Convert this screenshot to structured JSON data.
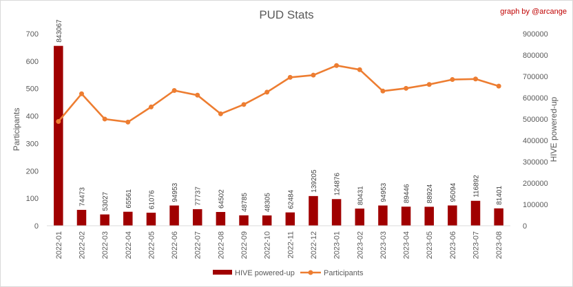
{
  "chart_data": {
    "type": "bar+line",
    "title": "PUD Stats",
    "credit": "graph by @arcange",
    "categories": [
      "2022-01",
      "2022-02",
      "2022-03",
      "2022-04",
      "2022-05",
      "2022-06",
      "2022-07",
      "2022-08",
      "2022-09",
      "2022-10",
      "2022-11",
      "2022-12",
      "2023-01",
      "2023-02",
      "2023-03",
      "2023-04",
      "2023-05",
      "2023-06",
      "2023-07",
      "2023-08"
    ],
    "ylabel_left": "Participants",
    "ylabel_right": "HIVE powered-up",
    "ylim_left": [
      0,
      700
    ],
    "yticks_left": [
      "0",
      "100",
      "200",
      "300",
      "400",
      "500",
      "600",
      "700"
    ],
    "ylim_right": [
      0,
      900000
    ],
    "yticks_right": [
      "0",
      "100000",
      "200000",
      "300000",
      "400000",
      "500000",
      "600000",
      "700000",
      "800000",
      "900000"
    ],
    "grid": false,
    "legend_position": "bottom",
    "series": [
      {
        "name": "HIVE powered-up",
        "type": "bar",
        "axis": "right",
        "color": "#a00000",
        "values": [
          843067,
          74473,
          53027,
          65561,
          61076,
          94953,
          77737,
          64502,
          48785,
          48305,
          62484,
          139205,
          124876,
          80431,
          94953,
          89446,
          88924,
          95094,
          116892,
          81401
        ],
        "labels": [
          "843067",
          "74473",
          "53027",
          "65561",
          "61076",
          "94953",
          "77737",
          "64502",
          "48785",
          "48305",
          "62484",
          "139205",
          "124876",
          "80431",
          "94953",
          "89446",
          "88924",
          "95094",
          "116892",
          "81401"
        ]
      },
      {
        "name": "Participants",
        "type": "line",
        "axis": "left",
        "color": "#ed7d31",
        "values": [
          380,
          481,
          389,
          378,
          433,
          493,
          476,
          408,
          442,
          487,
          541,
          549,
          584,
          569,
          491,
          501,
          515,
          533,
          535,
          509
        ]
      }
    ]
  }
}
